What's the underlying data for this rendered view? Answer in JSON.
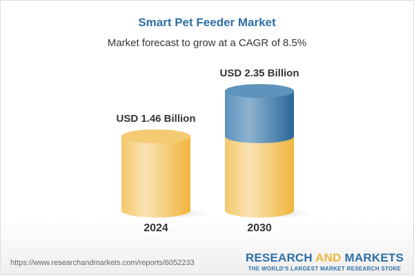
{
  "chart_data": {
    "type": "bar",
    "title": "Smart Pet Feeder Market",
    "subtitle": "Market forecast to grow at a CAGR of 8.5%",
    "categories": [
      "2024",
      "2030"
    ],
    "values": [
      1.46,
      2.35
    ],
    "value_labels": [
      "USD 1.46 Billion",
      "USD 2.35 Billion"
    ],
    "unit": "USD Billion",
    "style": "3d-cylinder",
    "colors": {
      "base": "#f2c35a",
      "growth": "#3f7bab"
    }
  },
  "footer": {
    "url": "https://www.researchandmarkets.com/reports/6052233",
    "logo_part1": "RESEARCH ",
    "logo_part2": "AND",
    "logo_part3": " MARKETS",
    "tagline": "THE WORLD'S LARGEST MARKET RESEARCH STORE"
  }
}
